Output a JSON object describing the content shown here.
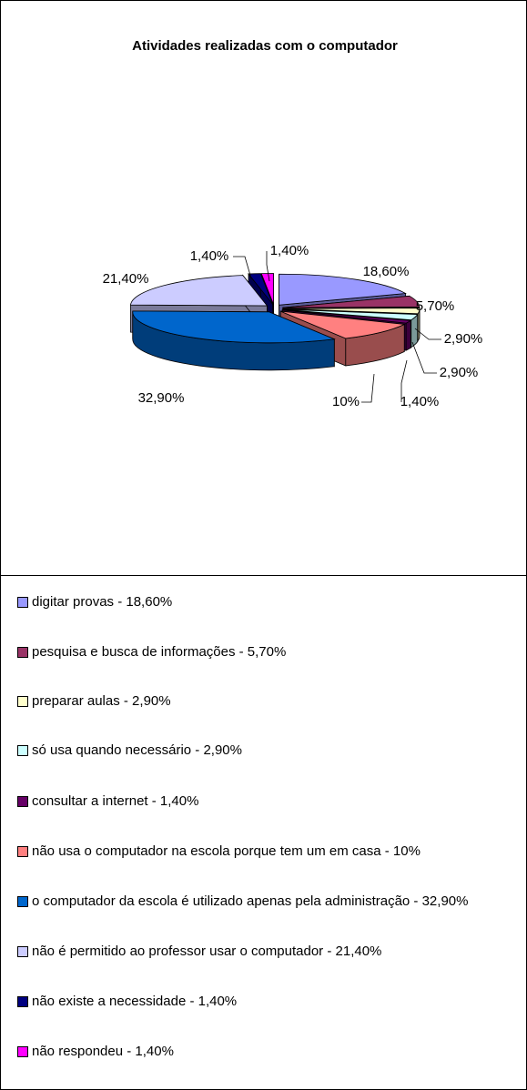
{
  "chart_data": {
    "type": "pie3d",
    "title": "Atividades realizadas com o computador",
    "categories": [
      "digitar provas - 18,60%",
      "pesquisa e busca de informações - 5,70%",
      "preparar aulas - 2,90%",
      "só usa quando necessário - 2,90%",
      "consultar a internet - 1,40%",
      "não usa o computador na escola porque tem um em casa - 10%",
      "o computador da escola é utilizado apenas pela administração - 32,90%",
      "não é permitido ao professor usar o computador - 21,40%",
      "não existe a necessidade - 1,40%",
      "não respondeu - 1,40%"
    ],
    "values": [
      18.6,
      5.7,
      2.9,
      2.9,
      1.4,
      10,
      32.9,
      21.4,
      1.4,
      1.4
    ],
    "value_labels": [
      "18,60%",
      "5,70%",
      "2,90%",
      "2,90%",
      "1,40%",
      "10%",
      "32,90%",
      "21,40%",
      "1,40%",
      "1,40%"
    ],
    "colors": [
      "#9999ff",
      "#993366",
      "#ffffcc",
      "#ccffff",
      "#660066",
      "#ff8080",
      "#0066cc",
      "#ccccff",
      "#000080",
      "#ff00ff"
    ],
    "legend": "bottom"
  }
}
